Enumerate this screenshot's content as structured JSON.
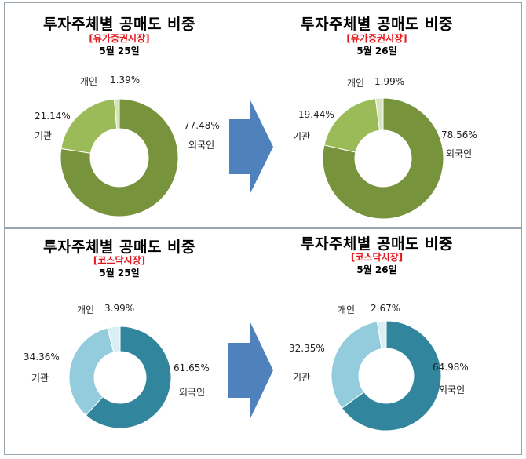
{
  "chart_data": [
    {
      "type": "pie",
      "title": "투자주체별 공매도 비중",
      "subtitle": "[유가증권시장]",
      "date": "5월 25일",
      "categories": [
        "외국인",
        "기관",
        "개인"
      ],
      "values": [
        77.48,
        21.14,
        1.39
      ],
      "value_labels": [
        "77.48%",
        "21.14%",
        "1.39%"
      ],
      "colors": [
        "#77933c",
        "#9bbb59",
        "#d7e4bd"
      ]
    },
    {
      "type": "pie",
      "title": "투자주체별 공매도 비중",
      "subtitle": "[유가증권시장]",
      "date": "5월 26일",
      "categories": [
        "외국인",
        "기관",
        "개인"
      ],
      "values": [
        78.56,
        19.44,
        1.99
      ],
      "value_labels": [
        "78.56%",
        "19.44%",
        "1.99%"
      ],
      "colors": [
        "#77933c",
        "#9bbb59",
        "#d7e4bd"
      ]
    },
    {
      "type": "pie",
      "title": "투자주체별 공매도 비중",
      "subtitle": "[코스닥시장]",
      "date": "5월 25일",
      "categories": [
        "외국인",
        "기관",
        "개인"
      ],
      "values": [
        61.65,
        34.36,
        3.99
      ],
      "value_labels": [
        "61.65%",
        "34.36%",
        "3.99%"
      ],
      "colors": [
        "#31859c",
        "#93cddd",
        "#daeef3"
      ]
    },
    {
      "type": "pie",
      "title": "투자주체별 공매도 비중",
      "subtitle": "[코스닥시장]",
      "date": "5월 26일",
      "categories": [
        "외국인",
        "기관",
        "개인"
      ],
      "values": [
        64.98,
        32.35,
        2.67
      ],
      "value_labels": [
        "64.98%",
        "32.35%",
        "2.67%"
      ],
      "colors": [
        "#31859c",
        "#93cddd",
        "#daeef3"
      ]
    }
  ],
  "arrow_color": "#4f81bd"
}
